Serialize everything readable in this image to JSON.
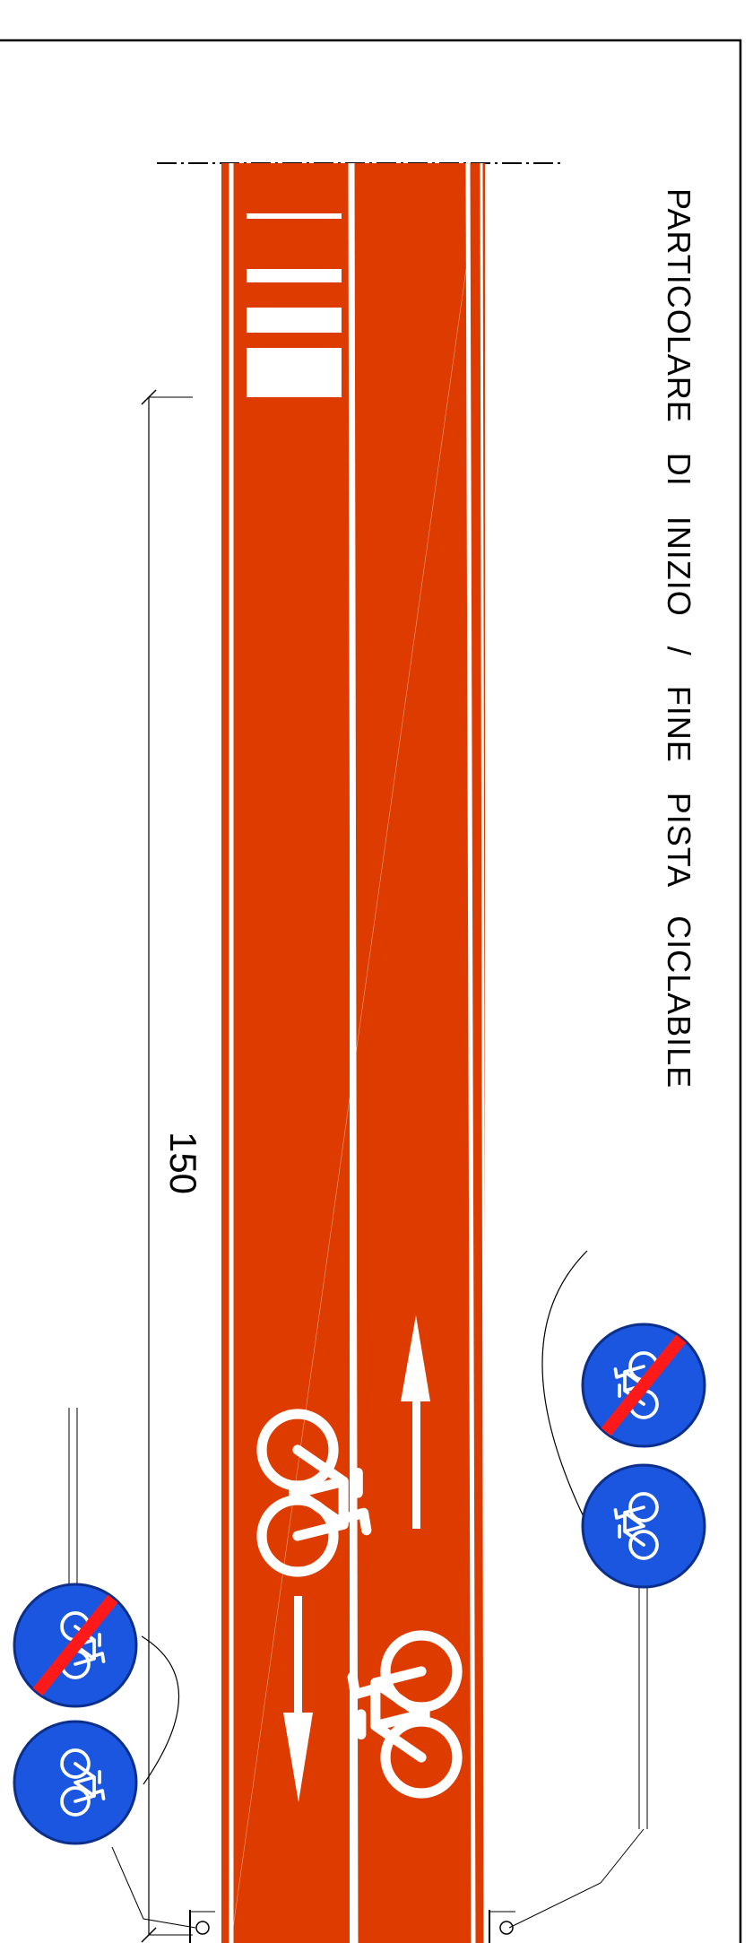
{
  "title": "PARTICOLARE DI INIZIO / FINE PISTA CICLABILE",
  "dimension_label": "150",
  "colors": {
    "lane_surface": "#dd3b00",
    "marking": "#ffffff",
    "sign_blue": "#1a56e0",
    "sign_blue_edge": "#0b2f8a",
    "end_bar": "#ff1a1a",
    "line": "#000000"
  },
  "signs": [
    {
      "id": "start-sign-top",
      "type": "start-cycle-lane",
      "icon": "bicycle-icon"
    },
    {
      "id": "end-sign-top",
      "type": "end-cycle-lane",
      "icon": "bicycle-icon"
    },
    {
      "id": "start-sign-bottom",
      "type": "start-cycle-lane",
      "icon": "bicycle-icon"
    },
    {
      "id": "end-sign-bottom",
      "type": "end-cycle-lane",
      "icon": "bicycle-icon"
    }
  ],
  "lane_symbols": [
    {
      "id": "bike-symbol-left-lane",
      "icon": "bicycle-icon"
    },
    {
      "id": "bike-symbol-right-lane",
      "icon": "bicycle-icon"
    },
    {
      "id": "arrow-left-lane",
      "icon": "arrow-down-icon",
      "direction": "down"
    },
    {
      "id": "arrow-right-lane",
      "icon": "arrow-up-icon",
      "direction": "up"
    }
  ]
}
